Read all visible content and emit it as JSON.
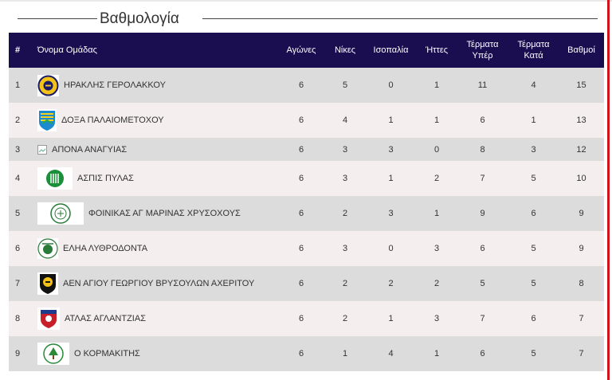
{
  "title": "Βαθμολογία",
  "headers": {
    "pos": "#",
    "team": "Όνομα Ομάδας",
    "played": "Αγώνες",
    "wins": "Νίκες",
    "draws": "Ισοπαλία",
    "losses": "Ήττες",
    "gf_1": "Τέρματα",
    "gf_2": "Υπέρ",
    "ga_1": "Τέρματα",
    "ga_2": "Κατά",
    "points": "Βαθμοί"
  },
  "rows": [
    {
      "pos": "1",
      "team": "ΗΡΑΚΛΗΣ ΓΕΡΟΛΑΚΚΟΥ",
      "played": "6",
      "wins": "5",
      "draws": "0",
      "losses": "1",
      "gf": "11",
      "ga": "4",
      "points": "15",
      "logo": "heraklis-crest-icon"
    },
    {
      "pos": "2",
      "team": "ΔΟΞΑ ΠΑΛΑΙΟΜΕΤΟΧΟΥ",
      "played": "6",
      "wins": "4",
      "draws": "1",
      "losses": "1",
      "gf": "6",
      "ga": "1",
      "points": "13",
      "logo": "doxa-crest-icon"
    },
    {
      "pos": "3",
      "team": "ΑΠΟΝΑ ΑΝΑΓΥΙΑΣ",
      "played": "6",
      "wins": "3",
      "draws": "3",
      "losses": "0",
      "gf": "8",
      "ga": "3",
      "points": "12",
      "logo": "broken-image-icon"
    },
    {
      "pos": "4",
      "team": "ΑΣΠΙΣ ΠΥΛΑΣ",
      "played": "6",
      "wins": "3",
      "draws": "1",
      "losses": "2",
      "gf": "7",
      "ga": "5",
      "points": "10",
      "logo": "aspis-crest-icon"
    },
    {
      "pos": "5",
      "team": "ΦΟΙΝΙΚΑΣ ΑΓ ΜΑΡΙΝΑΣ ΧΡΥΣΟΧΟΥΣ",
      "played": "6",
      "wins": "2",
      "draws": "3",
      "losses": "1",
      "gf": "9",
      "ga": "6",
      "points": "9",
      "logo": "foinikas-crest-icon"
    },
    {
      "pos": "6",
      "team": "ΕΛΗΑ ΛΥΘΡΟΔΟΝΤΑ",
      "played": "6",
      "wins": "3",
      "draws": "0",
      "losses": "3",
      "gf": "6",
      "ga": "5",
      "points": "9",
      "logo": "elia-crest-icon"
    },
    {
      "pos": "7",
      "team": "ΑΕΝ ΑΓΙΟΥ ΓΕΩΡΓΙΟΥ ΒΡΥΣΟΥΛΩΝ ΑΧΕΡΙΤΟΥ",
      "played": "6",
      "wins": "2",
      "draws": "2",
      "losses": "2",
      "gf": "5",
      "ga": "5",
      "points": "8",
      "logo": "aen-crest-icon"
    },
    {
      "pos": "8",
      "team": "ΑΤΛΑΣ ΑΓΛΑΝΤΖΙΑΣ",
      "played": "6",
      "wins": "2",
      "draws": "1",
      "losses": "3",
      "gf": "7",
      "ga": "6",
      "points": "7",
      "logo": "atlas-crest-icon"
    },
    {
      "pos": "9",
      "team": "Ο ΚΟΡΜΑΚΙΤΗΣ",
      "played": "6",
      "wins": "1",
      "draws": "4",
      "losses": "1",
      "gf": "6",
      "ga": "5",
      "points": "7",
      "logo": "kormakitis-crest-icon"
    }
  ]
}
